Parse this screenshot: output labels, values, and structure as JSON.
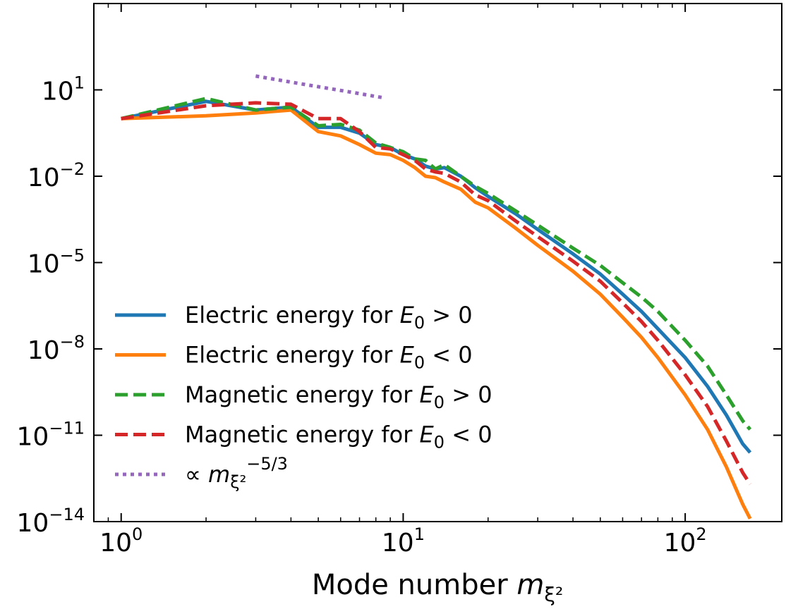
{
  "chart_data": {
    "type": "line",
    "title": "",
    "xlabel": "Mode number",
    "xlabel_math": "m",
    "xlabel_sub": "ξ²",
    "ylabel": "",
    "xscale": "log",
    "yscale": "log",
    "xlim": [
      0.8,
      220
    ],
    "ylim": [
      1e-14,
      10000.0
    ],
    "grid": false,
    "legend_position": "lower-left",
    "xticks": [
      {
        "value": 1,
        "base": "10",
        "exp": "0"
      },
      {
        "value": 10,
        "base": "10",
        "exp": "1"
      },
      {
        "value": 100,
        "base": "10",
        "exp": "2"
      }
    ],
    "yticks": [
      {
        "value": 10,
        "base": "10",
        "exp": "1"
      },
      {
        "value": 0.01,
        "base": "10",
        "exp": "−2"
      },
      {
        "value": 1e-05,
        "base": "10",
        "exp": "−5"
      },
      {
        "value": 1e-08,
        "base": "10",
        "exp": "−8"
      },
      {
        "value": 1e-11,
        "base": "10",
        "exp": "−11"
      },
      {
        "value": 1e-14,
        "base": "10",
        "exp": "−14"
      }
    ],
    "series": [
      {
        "name": "Electric energy for E₀ > 0",
        "label_text": "Electric energy for ",
        "label_math": "E",
        "label_sub": "0",
        "label_rel": " > 0",
        "color": "#1f77b4",
        "style": "solid",
        "x": [
          1,
          2,
          3,
          4,
          5,
          6,
          7,
          8,
          9,
          10,
          11,
          12,
          13,
          14,
          16,
          18,
          20,
          25,
          30,
          40,
          50,
          60,
          70,
          80,
          100,
          120,
          140,
          160,
          170
        ],
        "y_exp": [
          0.0,
          0.6,
          0.3,
          0.4,
          -0.3,
          -0.3,
          -0.5,
          -0.9,
          -1.0,
          -1.25,
          -1.4,
          -1.65,
          -1.75,
          -1.7,
          -2.0,
          -2.4,
          -2.7,
          -3.3,
          -3.85,
          -4.7,
          -5.4,
          -6.1,
          -6.7,
          -7.3,
          -8.3,
          -9.3,
          -10.3,
          -11.3,
          -11.6
        ]
      },
      {
        "name": "Electric energy for E₀ < 0",
        "label_text": "Electric energy for ",
        "label_math": "E",
        "label_sub": "0",
        "label_rel": " < 0",
        "color": "#ff7f0e",
        "style": "solid",
        "x": [
          1,
          2,
          3,
          4,
          5,
          6,
          7,
          8,
          9,
          10,
          11,
          12,
          13,
          14,
          16,
          18,
          20,
          25,
          30,
          40,
          50,
          60,
          70,
          80,
          100,
          120,
          140,
          160,
          170
        ],
        "y_exp": [
          0.0,
          0.1,
          0.2,
          0.3,
          -0.45,
          -0.6,
          -0.9,
          -1.2,
          -1.25,
          -1.45,
          -1.7,
          -2.0,
          -2.05,
          -2.2,
          -2.45,
          -2.9,
          -3.1,
          -3.8,
          -4.4,
          -5.3,
          -6.1,
          -6.9,
          -7.6,
          -8.3,
          -9.6,
          -10.8,
          -12.1,
          -13.4,
          -13.9
        ]
      },
      {
        "name": "Magnetic energy for E₀ > 0",
        "label_text": "Magnetic energy for ",
        "label_math": "E",
        "label_sub": "0",
        "label_rel": " > 0",
        "color": "#2ca02c",
        "style": "dashed",
        "x": [
          1,
          2,
          3,
          4,
          5,
          6,
          7,
          8,
          9,
          10,
          11,
          12,
          13,
          14,
          16,
          18,
          20,
          25,
          30,
          40,
          50,
          60,
          70,
          80,
          100,
          120,
          140,
          160,
          170
        ],
        "y_exp": [
          0.0,
          0.7,
          0.3,
          0.4,
          -0.25,
          -0.2,
          -0.4,
          -0.85,
          -1.0,
          -1.15,
          -1.4,
          -1.45,
          -1.75,
          -1.6,
          -2.0,
          -2.35,
          -2.6,
          -3.2,
          -3.7,
          -4.5,
          -5.1,
          -5.7,
          -6.2,
          -6.7,
          -7.7,
          -8.6,
          -9.6,
          -10.5,
          -10.8
        ]
      },
      {
        "name": "Magnetic energy for E₀ < 0",
        "label_text": "Magnetic energy for ",
        "label_math": "E",
        "label_sub": "0",
        "label_rel": " < 0",
        "color": "#d62728",
        "style": "dashed",
        "x": [
          1,
          2,
          3,
          4,
          5,
          6,
          7,
          8,
          9,
          10,
          11,
          12,
          13,
          14,
          16,
          18,
          20,
          25,
          30,
          40,
          50,
          60,
          70,
          80,
          100,
          120,
          140,
          160,
          170
        ],
        "y_exp": [
          0.0,
          0.45,
          0.55,
          0.5,
          0.0,
          0.0,
          -0.45,
          -1.0,
          -1.05,
          -1.25,
          -1.45,
          -1.75,
          -1.85,
          -1.9,
          -2.2,
          -2.65,
          -2.85,
          -3.55,
          -4.1,
          -4.95,
          -5.65,
          -6.4,
          -7.05,
          -7.7,
          -8.9,
          -10.0,
          -11.2,
          -12.3,
          -12.7
        ]
      },
      {
        "name": "∝ m_ξ²^(−5/3)",
        "label_text": "∝ ",
        "label_math": "m",
        "label_sub": "ξ²",
        "label_sup": "−5/3",
        "color": "#9467bd",
        "style": "dotted",
        "x": [
          3,
          4,
          5,
          6,
          7,
          8,
          8.6
        ],
        "y_exp": [
          1.48,
          1.27,
          1.11,
          0.98,
          0.87,
          0.77,
          0.72
        ]
      }
    ]
  }
}
